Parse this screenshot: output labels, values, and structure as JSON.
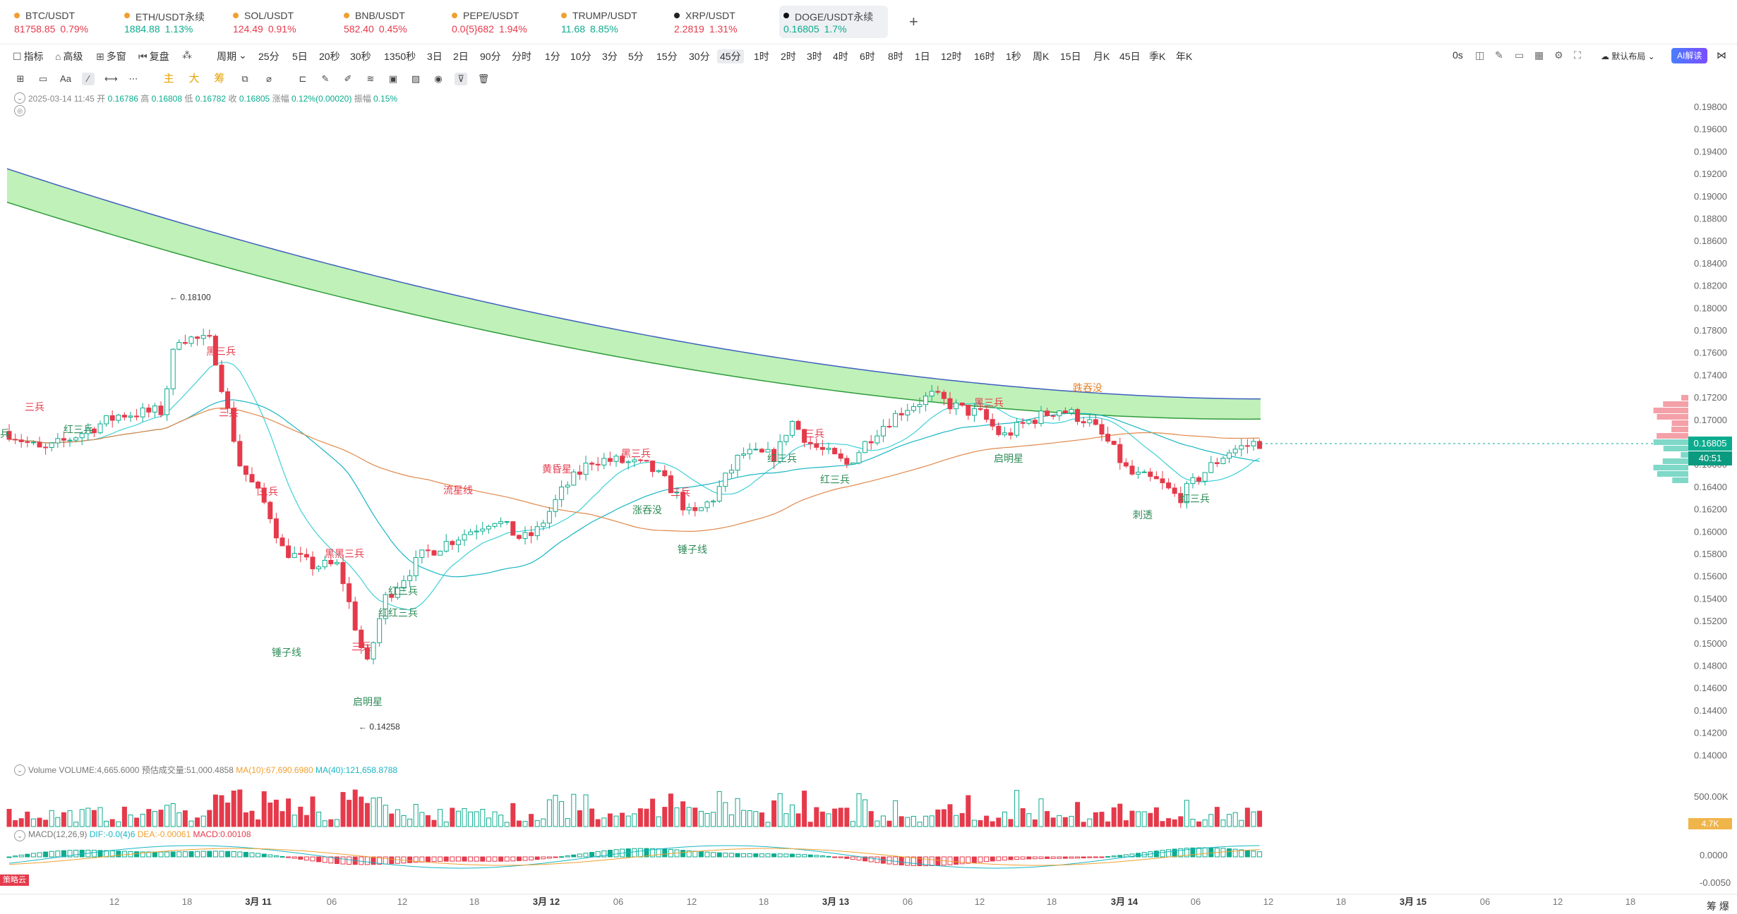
{
  "tickers": [
    {
      "symbol": "BTC/USDT",
      "price": "81758.85",
      "change": "0.79%",
      "dir": "down",
      "dot": "#f0a030"
    },
    {
      "symbol": "ETH/USDT永续",
      "price": "1884.88",
      "change": "1.13%",
      "dir": "up",
      "dot": "#f0a030"
    },
    {
      "symbol": "SOL/USDT",
      "price": "124.49",
      "change": "0.91%",
      "dir": "down",
      "dot": "#f0a030"
    },
    {
      "symbol": "BNB/USDT",
      "price": "582.40",
      "change": "0.45%",
      "dir": "down",
      "dot": "#f0a030"
    },
    {
      "symbol": "PEPE/USDT",
      "price": "0.0{5}682",
      "change": "1.94%",
      "dir": "down",
      "dot": "#f0a030"
    },
    {
      "symbol": "TRUMP/USDT",
      "price": "11.68",
      "change": "8.85%",
      "dir": "up",
      "dot": "#f0a030"
    },
    {
      "symbol": "XRP/USDT",
      "price": "2.2819",
      "change": "1.31%",
      "dir": "down",
      "dot": "#222222"
    },
    {
      "symbol": "DOGE/USDT永续",
      "price": "0.16805",
      "change": "1.7%",
      "dir": "up",
      "dot": "#111111",
      "active": true
    }
  ],
  "add_tab": "+",
  "toolbar_left": [
    "指标",
    "高级",
    "多窗",
    "复盘",
    "",
    "周期"
  ],
  "intervals": [
    "25分",
    "5日",
    "20秒",
    "30秒",
    "1350秒",
    "3日",
    "2日",
    "90分",
    "分时",
    "1分",
    "10分",
    "3分",
    "5分",
    "15分",
    "30分",
    "45分",
    "1时",
    "2时",
    "3时",
    "4时",
    "6时",
    "8时",
    "1日",
    "12时",
    "16时",
    "1秒",
    "周K",
    "15日",
    "月K",
    "45日",
    "季K",
    "年K"
  ],
  "selected_interval": "45分",
  "toolbar_right": {
    "countdown": "0s",
    "layout": "默认布局",
    "ai": "AI解读"
  },
  "indicator_tabs": [
    "主",
    "大",
    "筹"
  ],
  "ohlc": {
    "date": "2025-03-14 11:45",
    "open_label": "开",
    "open": "0.16786",
    "high_label": "高",
    "high": "0.16808",
    "low_label": "低",
    "low": "0.16782",
    "close_label": "收",
    "close": "0.16805",
    "chg_label": "涨幅",
    "chg": "0.12%(0.00020)",
    "amp_label": "振幅",
    "amp": "0.15%"
  },
  "price_axis": [
    "0.19800",
    "0.19600",
    "0.19400",
    "0.19200",
    "0.19000",
    "0.18800",
    "0.18600",
    "0.18400",
    "0.18200",
    "0.18000",
    "0.17800",
    "0.17600",
    "0.17400",
    "0.17200",
    "0.17000",
    "0.16800",
    "0.16600",
    "0.16400",
    "0.16200",
    "0.16000",
    "0.15800",
    "0.15600",
    "0.15400",
    "0.15200",
    "0.15000",
    "0.14800",
    "0.14600",
    "0.14400",
    "0.14200",
    "0.14000"
  ],
  "current_price": "0.16805",
  "countdown_box": "40:51",
  "extremes": {
    "high": "0.18100",
    "low": "0.14258"
  },
  "patterns": [
    {
      "t": "三兵",
      "c": "#e53a4b"
    },
    {
      "t": "兵",
      "c": "#2e8b57"
    },
    {
      "t": "红三兵",
      "c": "#2e8b57"
    },
    {
      "t": "黑三兵",
      "c": "#e53a4b"
    },
    {
      "t": "三兵",
      "c": "#e53a4b"
    },
    {
      "t": "三兵",
      "c": "#e53a4b"
    },
    {
      "t": "锤子线",
      "c": "#2e8b57"
    },
    {
      "t": "黑黑三兵",
      "c": "#e53a4b"
    },
    {
      "t": "红三兵",
      "c": "#2e8b57"
    },
    {
      "t": "红红三兵",
      "c": "#2e8b57"
    },
    {
      "t": "三兵",
      "c": "#e53a4b"
    },
    {
      "t": "启明星",
      "c": "#2e8b57"
    },
    {
      "t": "流星线",
      "c": "#e53a4b"
    },
    {
      "t": "黄昏星",
      "c": "#e53a4b"
    },
    {
      "t": "黑三兵",
      "c": "#e53a4b"
    },
    {
      "t": "涨吞没",
      "c": "#2e8b57"
    },
    {
      "t": "三兵",
      "c": "#e53a4b"
    },
    {
      "t": "锤子线",
      "c": "#2e8b57"
    },
    {
      "t": "红三兵",
      "c": "#2e8b57"
    },
    {
      "t": "三兵",
      "c": "#e53a4b"
    },
    {
      "t": "红三兵",
      "c": "#2e8b57"
    },
    {
      "t": "黑三兵",
      "c": "#e53a4b"
    },
    {
      "t": "启明星",
      "c": "#2e8b57"
    },
    {
      "t": "跌吞没",
      "c": "#e67e22"
    },
    {
      "t": "刺透",
      "c": "#2e8b57"
    },
    {
      "t": "红三兵",
      "c": "#2e8b57"
    }
  ],
  "volume": {
    "label": "Volume",
    "value": "VOLUME:4,665.6000",
    "est": "预估成交量:51,000.4858",
    "ma10": "MA(10):67,690.6980",
    "ma40": "MA(40):121,658.8788",
    "axis_label": "500.00K",
    "current": "4.7K"
  },
  "macd": {
    "label": "MACD(12,26,9)",
    "dif": "DIF:-0.0(4)6",
    "dea": "DEA:-0.00061",
    "macd": "MACD:0.00108",
    "axis": [
      "0.0000",
      "-0.0050"
    ]
  },
  "red_tag": "策略云",
  "time_axis": [
    {
      "t": "12",
      "bold": false
    },
    {
      "t": "18",
      "bold": false
    },
    {
      "t": "3月 11",
      "bold": true
    },
    {
      "t": "06",
      "bold": false
    },
    {
      "t": "12",
      "bold": false
    },
    {
      "t": "18",
      "bold": false
    },
    {
      "t": "3月 12",
      "bold": true
    },
    {
      "t": "06",
      "bold": false
    },
    {
      "t": "12",
      "bold": false
    },
    {
      "t": "18",
      "bold": false
    },
    {
      "t": "3月 13",
      "bold": true
    },
    {
      "t": "06",
      "bold": false
    },
    {
      "t": "12",
      "bold": false
    },
    {
      "t": "18",
      "bold": false
    },
    {
      "t": "3月 14",
      "bold": true
    },
    {
      "t": "06",
      "bold": false
    },
    {
      "t": "12",
      "bold": false
    },
    {
      "t": "18",
      "bold": false
    },
    {
      "t": "3月 15",
      "bold": true
    },
    {
      "t": "06",
      "bold": false
    },
    {
      "t": "12",
      "bold": false
    },
    {
      "t": "18",
      "bold": false
    }
  ],
  "corner_text": "筹 爆",
  "colors": {
    "up": "#0cab8e",
    "down": "#e53a4b",
    "band": "#b8f0b0"
  }
}
